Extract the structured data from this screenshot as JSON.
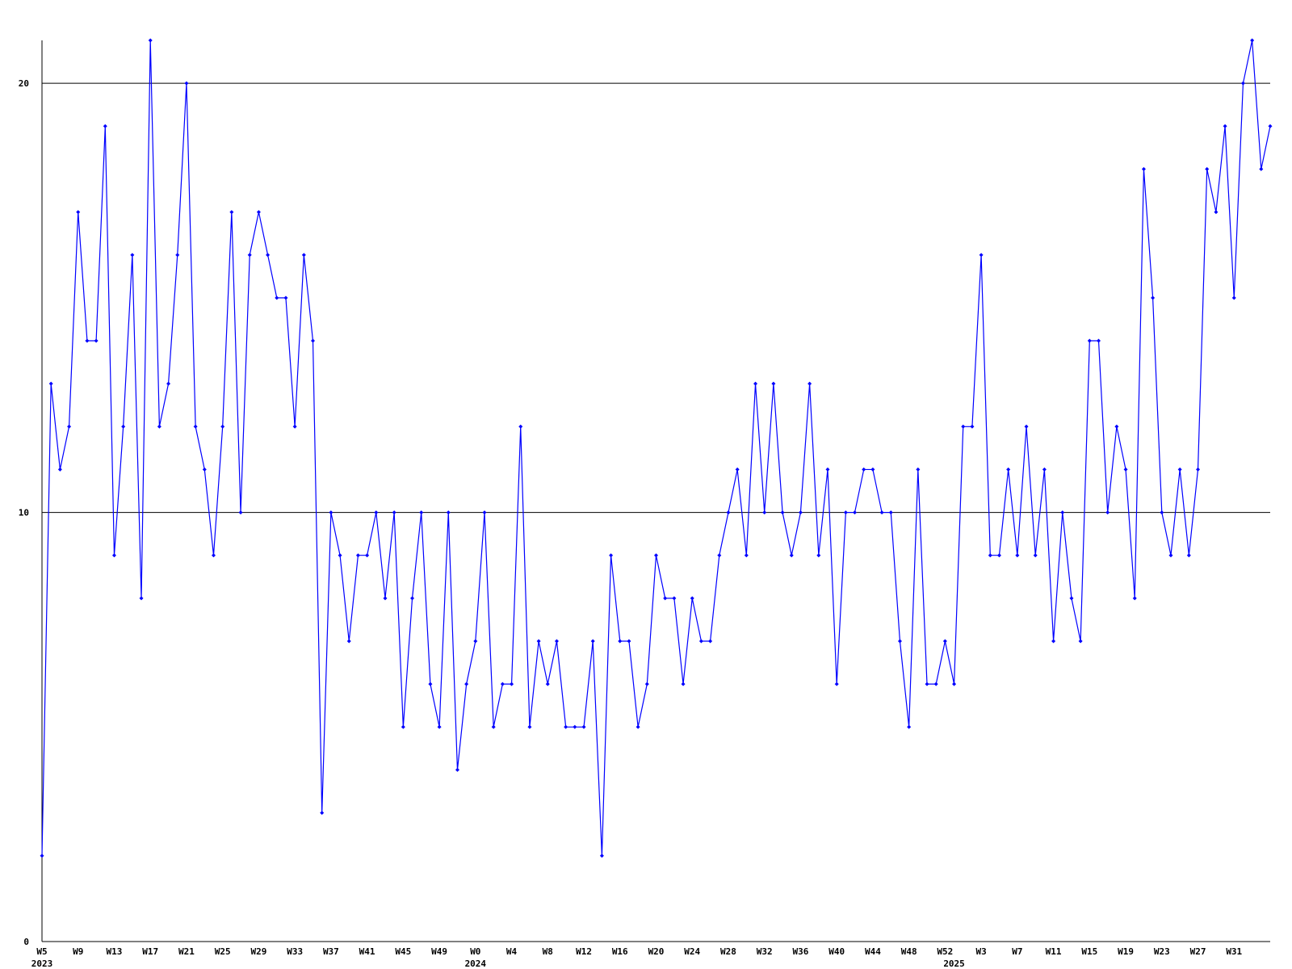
{
  "chart_data": {
    "type": "line",
    "categories": [
      "W5",
      null,
      null,
      null,
      "W9",
      null,
      null,
      null,
      "W13",
      null,
      null,
      null,
      "W17",
      null,
      null,
      null,
      "W21",
      null,
      null,
      null,
      "W25",
      null,
      null,
      null,
      "W29",
      null,
      null,
      null,
      "W33",
      null,
      null,
      null,
      "W37",
      null,
      null,
      null,
      "W41",
      null,
      null,
      null,
      "W45",
      null,
      null,
      null,
      "W49",
      null,
      null,
      null,
      "W0",
      null,
      null,
      null,
      "W4",
      null,
      null,
      null,
      "W8",
      null,
      null,
      null,
      "W12",
      null,
      null,
      null,
      "W16",
      null,
      null,
      null,
      "W20",
      null,
      null,
      null,
      "W24",
      null,
      null,
      null,
      "W28",
      null,
      null,
      null,
      "W32",
      null,
      null,
      null,
      "W36",
      null,
      null,
      null,
      "W40",
      null,
      null,
      null,
      "W44",
      null,
      null,
      null,
      "W48",
      null,
      null,
      null,
      "W52",
      null,
      null,
      null,
      "W3",
      null,
      null,
      null,
      "W7",
      null,
      null,
      null,
      "W11",
      null,
      null,
      null,
      "W15",
      null,
      null,
      null,
      "W19",
      null,
      null,
      null,
      "W23",
      null,
      null,
      null,
      "W27",
      null,
      null,
      null,
      "W31",
      null,
      null,
      null,
      null
    ],
    "category_years": [
      "2023",
      null,
      null,
      null,
      null,
      null,
      null,
      null,
      null,
      null,
      null,
      null,
      null,
      null,
      null,
      null,
      null,
      null,
      null,
      null,
      null,
      null,
      null,
      null,
      null,
      null,
      null,
      null,
      null,
      null,
      null,
      null,
      null,
      null,
      null,
      null,
      null,
      null,
      null,
      null,
      null,
      null,
      null,
      null,
      null,
      null,
      null,
      null,
      "2024",
      null,
      null,
      null,
      null,
      null,
      null,
      null,
      null,
      null,
      null,
      null,
      null,
      null,
      null,
      null,
      null,
      null,
      null,
      null,
      null,
      null,
      null,
      null,
      null,
      null,
      null,
      null,
      null,
      null,
      null,
      null,
      null,
      null,
      null,
      null,
      null,
      null,
      null,
      null,
      null,
      null,
      null,
      null,
      null,
      null,
      null,
      null,
      null,
      null,
      null,
      null,
      null,
      "2025",
      null,
      null,
      null,
      null,
      null,
      null,
      null,
      null,
      null,
      null,
      null,
      null,
      null,
      null,
      null,
      null,
      null,
      null,
      null,
      null,
      null,
      null,
      null,
      null,
      null,
      null,
      null,
      null,
      null,
      null,
      null,
      null,
      null,
      null,
      null
    ],
    "series": [
      {
        "color": "#0000ff",
        "values": [
          2,
          13,
          11,
          12,
          17,
          14,
          14,
          19,
          9,
          12,
          16,
          8,
          21,
          12,
          13,
          16,
          20,
          12,
          11,
          9,
          12,
          17,
          10,
          16,
          17,
          16,
          15,
          15,
          12,
          16,
          14,
          3,
          10,
          9,
          7,
          9,
          9,
          10,
          8,
          10,
          5,
          8,
          10,
          6,
          5,
          10,
          4,
          6,
          7,
          10,
          5,
          6,
          6,
          12,
          5,
          7,
          6,
          7,
          5,
          5,
          5,
          7,
          2,
          9,
          7,
          7,
          5,
          6,
          9,
          8,
          8,
          6,
          8,
          7,
          7,
          9,
          10,
          11,
          9,
          13,
          10,
          13,
          10,
          9,
          10,
          13,
          9,
          11,
          6,
          10,
          10,
          11,
          11,
          10,
          10,
          7,
          5,
          11,
          6,
          6,
          7,
          6,
          12,
          12,
          16,
          9,
          9,
          11,
          9,
          12,
          9,
          11,
          7,
          10,
          8,
          7,
          14,
          14,
          10,
          12,
          11,
          8,
          18,
          15,
          10,
          9,
          11,
          9,
          11,
          18,
          17,
          19,
          15,
          20,
          21,
          18,
          19
        ]
      }
    ],
    "ylim": [
      0,
      21
    ],
    "yticks": [
      0,
      10,
      20
    ],
    "grid": true
  }
}
